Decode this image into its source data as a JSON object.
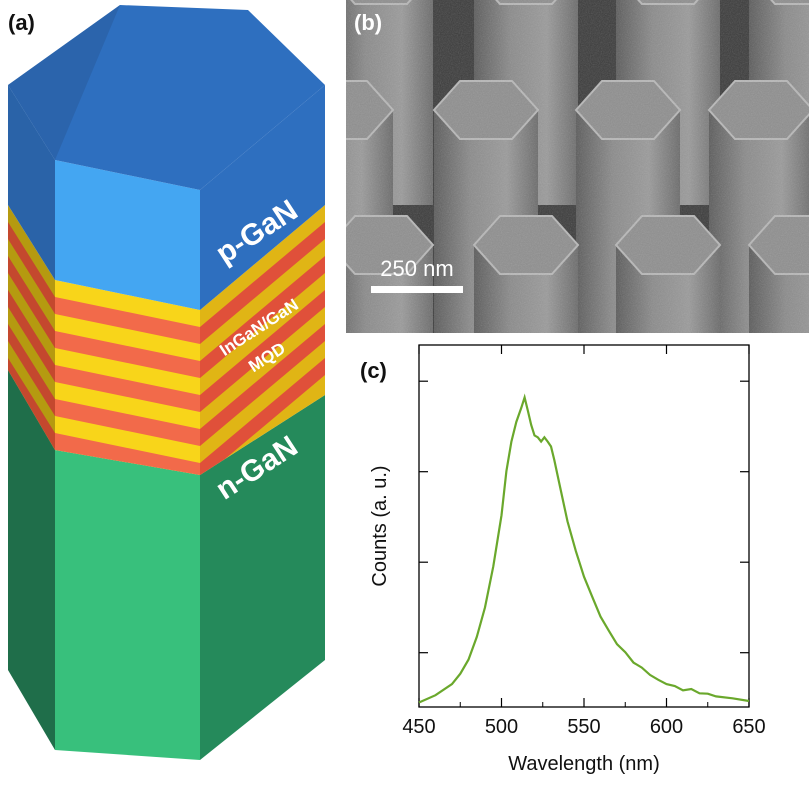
{
  "panel_a": {
    "label": "(a)",
    "layers": {
      "p_layer": "p-GaN",
      "mqd_line1": "InGaN/GaN",
      "mqd_line2": "MQD",
      "n_layer": "n-GaN"
    },
    "colors": {
      "p_top": "#2e6fbf",
      "p_front": "#44a6f2",
      "p_left": "#2a63a8",
      "n_front": "#38c07c",
      "n_left": "#1f6e4a",
      "n_right": "#258a5b",
      "mqd_yellow": "#f8d51a",
      "mqd_red": "#f26a4a"
    }
  },
  "panel_b": {
    "label": "(b)",
    "scale_bar": "250 nm"
  },
  "panel_c": {
    "label": "(c)",
    "chart_data": {
      "type": "line",
      "xlabel": "Wavelength (nm)",
      "ylabel": "Counts (a. u.)",
      "xlim": [
        450,
        650
      ],
      "x_ticks": [
        "450",
        "500",
        "550",
        "600",
        "650"
      ],
      "grid": false,
      "series": [
        {
          "color": "#6aa82c",
          "x": [
            450,
            460,
            470,
            475,
            480,
            485,
            490,
            495,
            500,
            503,
            506,
            509,
            512,
            514,
            516,
            518,
            520,
            522,
            524,
            526,
            528,
            530,
            532,
            535,
            540,
            545,
            550,
            555,
            560,
            565,
            570,
            575,
            580,
            585,
            590,
            595,
            600,
            605,
            610,
            615,
            620,
            625,
            630,
            640,
            650
          ],
          "y": [
            0.01,
            0.03,
            0.07,
            0.1,
            0.15,
            0.22,
            0.32,
            0.45,
            0.62,
            0.76,
            0.86,
            0.92,
            0.97,
            1.0,
            0.96,
            0.91,
            0.88,
            0.87,
            0.86,
            0.87,
            0.86,
            0.84,
            0.8,
            0.72,
            0.6,
            0.5,
            0.42,
            0.35,
            0.29,
            0.24,
            0.2,
            0.17,
            0.14,
            0.12,
            0.1,
            0.08,
            0.07,
            0.06,
            0.05,
            0.05,
            0.04,
            0.035,
            0.03,
            0.02,
            0.015
          ]
        }
      ]
    }
  }
}
